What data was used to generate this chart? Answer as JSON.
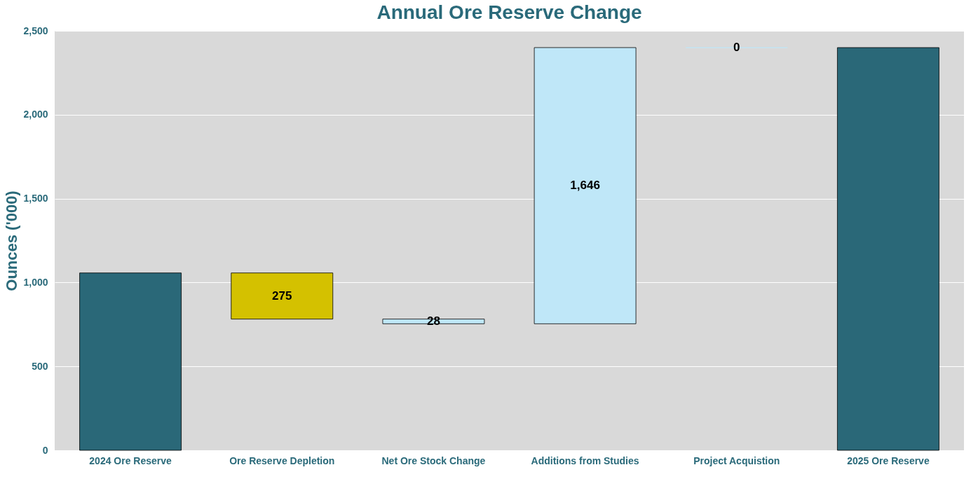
{
  "chart_data": {
    "type": "bar",
    "title": "Annual Ore Reserve Change",
    "ylabel": "Ounces ('000)",
    "categories": [
      "2024 Ore Reserve",
      "Ore Reserve Depletion",
      "Net Ore Stock Change",
      "Additions from Studies",
      "Project Acquistion",
      "2025 Ore Reserve"
    ],
    "values": [
      1057,
      275,
      28,
      1646,
      0,
      2400
    ],
    "base": [
      0,
      782,
      754,
      754,
      2400,
      0
    ],
    "colors": [
      "#2a6878",
      "#d4c100",
      "#bfe7f8",
      "#bfe7f8",
      "#bfe7f8",
      "#2a6878"
    ],
    "value_labels": [
      null,
      "275",
      "28",
      "1,646",
      "0",
      null
    ],
    "ylim": [
      0,
      2500
    ],
    "yticks": [
      {
        "value": 0,
        "label": "0"
      },
      {
        "value": 500,
        "label": "500"
      },
      {
        "value": 1000,
        "label": "1,000"
      },
      {
        "value": 1500,
        "label": "1,500"
      },
      {
        "value": 2000,
        "label": "2,000"
      },
      {
        "value": 2500,
        "label": "2,500"
      }
    ],
    "grid": "y"
  }
}
